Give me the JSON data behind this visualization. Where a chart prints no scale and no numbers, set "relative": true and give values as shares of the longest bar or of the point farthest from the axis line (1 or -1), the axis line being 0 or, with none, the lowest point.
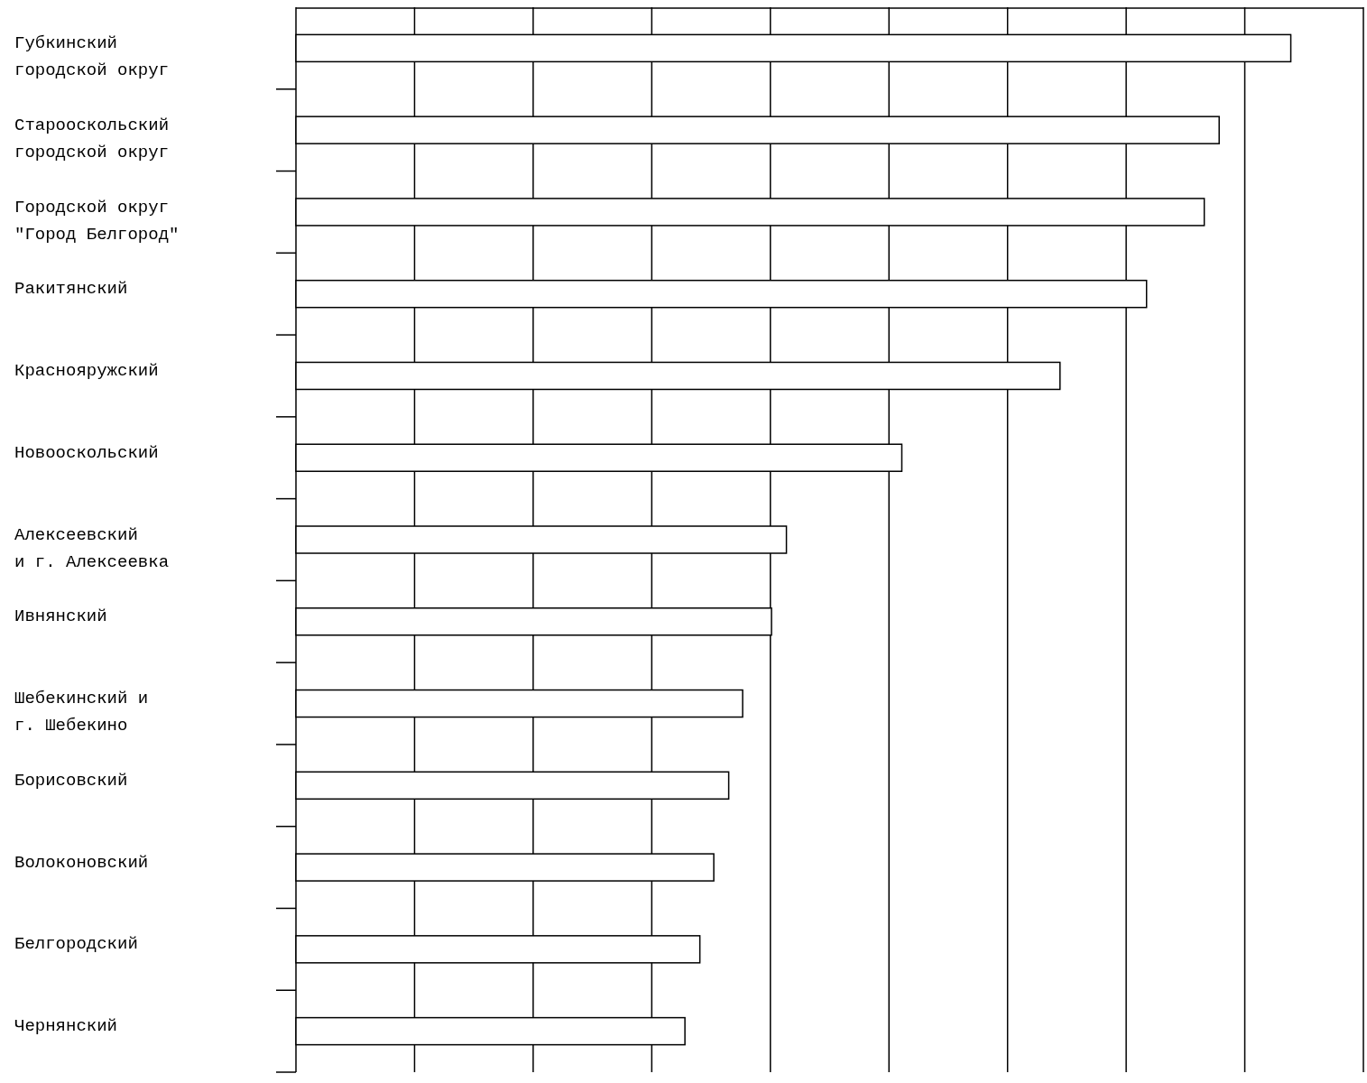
{
  "chart_data": {
    "type": "bar",
    "orientation": "horizontal",
    "relative": true,
    "grid": "x",
    "color": "#ffffff",
    "categories": [
      "Губкинский\nгородской округ",
      "Старооскольский\nгородской округ",
      "Городской округ\n\"Город Белгород\"",
      "Ракитянский",
      "Краснояружский",
      "Новооскольский",
      "Алексеевский\nи г. Алексеевка",
      "Ивнянский",
      "Шебекинский и\nг. Шебекино",
      "Борисовский",
      "Волоконовский",
      "Белгородский",
      "Чернянский"
    ],
    "values": [
      1,
      0.928,
      0.913,
      0.855,
      0.768,
      0.609,
      0.493,
      0.478,
      0.449,
      0.435,
      0.42,
      0.406,
      0.391
    ]
  }
}
